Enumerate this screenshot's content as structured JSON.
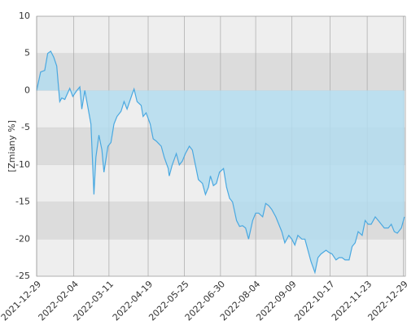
{
  "chart_data": {
    "type": "area",
    "y_label": "[Zmiany %]",
    "x": [
      "2021-12-29",
      "2022-01-02",
      "2022-01-06",
      "2022-01-09",
      "2022-01-12",
      "2022-01-15",
      "2022-01-18",
      "2022-01-21",
      "2022-01-23",
      "2022-01-26",
      "2022-01-31",
      "2022-02-03",
      "2022-02-07",
      "2022-02-10",
      "2022-02-12",
      "2022-02-15",
      "2022-02-17",
      "2022-02-21",
      "2022-02-24",
      "2022-02-26",
      "2022-03-01",
      "2022-03-04",
      "2022-03-06",
      "2022-03-10",
      "2022-03-13",
      "2022-03-16",
      "2022-03-19",
      "2022-03-23",
      "2022-03-26",
      "2022-03-29",
      "2022-04-03",
      "2022-04-05",
      "2022-04-08",
      "2022-04-12",
      "2022-04-14",
      "2022-04-17",
      "2022-04-21",
      "2022-04-24",
      "2022-04-27",
      "2022-05-02",
      "2022-05-05",
      "2022-05-09",
      "2022-05-10",
      "2022-05-13",
      "2022-05-17",
      "2022-05-20",
      "2022-05-23",
      "2022-05-26",
      "2022-05-30",
      "2022-06-02",
      "2022-06-05",
      "2022-06-08",
      "2022-06-12",
      "2022-06-15",
      "2022-06-18",
      "2022-06-20",
      "2022-06-23",
      "2022-06-26",
      "2022-06-29",
      "2022-07-03",
      "2022-07-06",
      "2022-07-09",
      "2022-07-12",
      "2022-07-16",
      "2022-07-19",
      "2022-07-22",
      "2022-07-25",
      "2022-07-28",
      "2022-08-01",
      "2022-08-04",
      "2022-08-07",
      "2022-08-11",
      "2022-08-14",
      "2022-08-17",
      "2022-08-20",
      "2022-08-24",
      "2022-08-27",
      "2022-08-30",
      "2022-09-02",
      "2022-09-06",
      "2022-09-09",
      "2022-09-12",
      "2022-09-15",
      "2022-09-19",
      "2022-09-22",
      "2022-09-25",
      "2022-09-28",
      "2022-10-02",
      "2022-10-05",
      "2022-10-08",
      "2022-10-13",
      "2022-10-16",
      "2022-10-19",
      "2022-10-23",
      "2022-10-26",
      "2022-10-29",
      "2022-11-01",
      "2022-11-05",
      "2022-11-08",
      "2022-11-11",
      "2022-11-14",
      "2022-11-18",
      "2022-11-21",
      "2022-11-24",
      "2022-11-27",
      "2022-12-01",
      "2022-12-04",
      "2022-12-07",
      "2022-12-10",
      "2022-12-14",
      "2022-12-17",
      "2022-12-20",
      "2022-12-23",
      "2022-12-27",
      "2022-12-30"
    ],
    "values": [
      0,
      2.5,
      2.7,
      5,
      5.3,
      4.5,
      3.3,
      -1.5,
      -1,
      -1.2,
      0.3,
      -0.8,
      0,
      0.5,
      -2.5,
      0,
      -1.5,
      -4.5,
      -14,
      -9,
      -6,
      -8,
      -11,
      -7.5,
      -7,
      -4.5,
      -3.5,
      -2.8,
      -1.5,
      -2.5,
      -0.5,
      0.2,
      -1.5,
      -2,
      -3.5,
      -3,
      -4.5,
      -6.5,
      -6.8,
      -7.5,
      -9,
      -10.5,
      -11.5,
      -10,
      -8.5,
      -10,
      -9.5,
      -8.5,
      -7.5,
      -8,
      -10,
      -12,
      -12.5,
      -14,
      -13,
      -11.5,
      -12.8,
      -12.5,
      -11,
      -10.5,
      -13,
      -14.5,
      -15,
      -17.5,
      -18.3,
      -18.2,
      -18.5,
      -20,
      -17.5,
      -16.5,
      -16.5,
      -17,
      -15.2,
      -15.5,
      -16,
      -17,
      -18,
      -19,
      -20.5,
      -19.5,
      -20,
      -20.8,
      -19.5,
      -20,
      -20,
      -21.5,
      -23,
      -24.5,
      -22.5,
      -22,
      -21.5,
      -21.8,
      -22,
      -22.8,
      -22.5,
      -22.5,
      -22.8,
      -22.8,
      -21,
      -20.5,
      -19,
      -19.5,
      -17.5,
      -18,
      -18,
      -17,
      -17.5,
      -18,
      -18.5,
      -18.5,
      -18,
      -19,
      -19.2,
      -18.5,
      -17
    ],
    "color": "#4aa8e0",
    "fill": "#b3dcef",
    "xlim": [
      "2021-12-29",
      "2022-12-31"
    ],
    "xticks": [
      "2021-12-29",
      "2022-02-04",
      "2022-03-11",
      "2022-04-19",
      "2022-05-25",
      "2022-06-30",
      "2022-08-04",
      "2022-09-09",
      "2022-10-17",
      "2022-11-23",
      "2022-12-29"
    ],
    "ylim": [
      -25,
      10
    ],
    "yticks": [
      10,
      5,
      0,
      -5,
      -10,
      -15,
      -20,
      -25
    ],
    "grid": true
  }
}
